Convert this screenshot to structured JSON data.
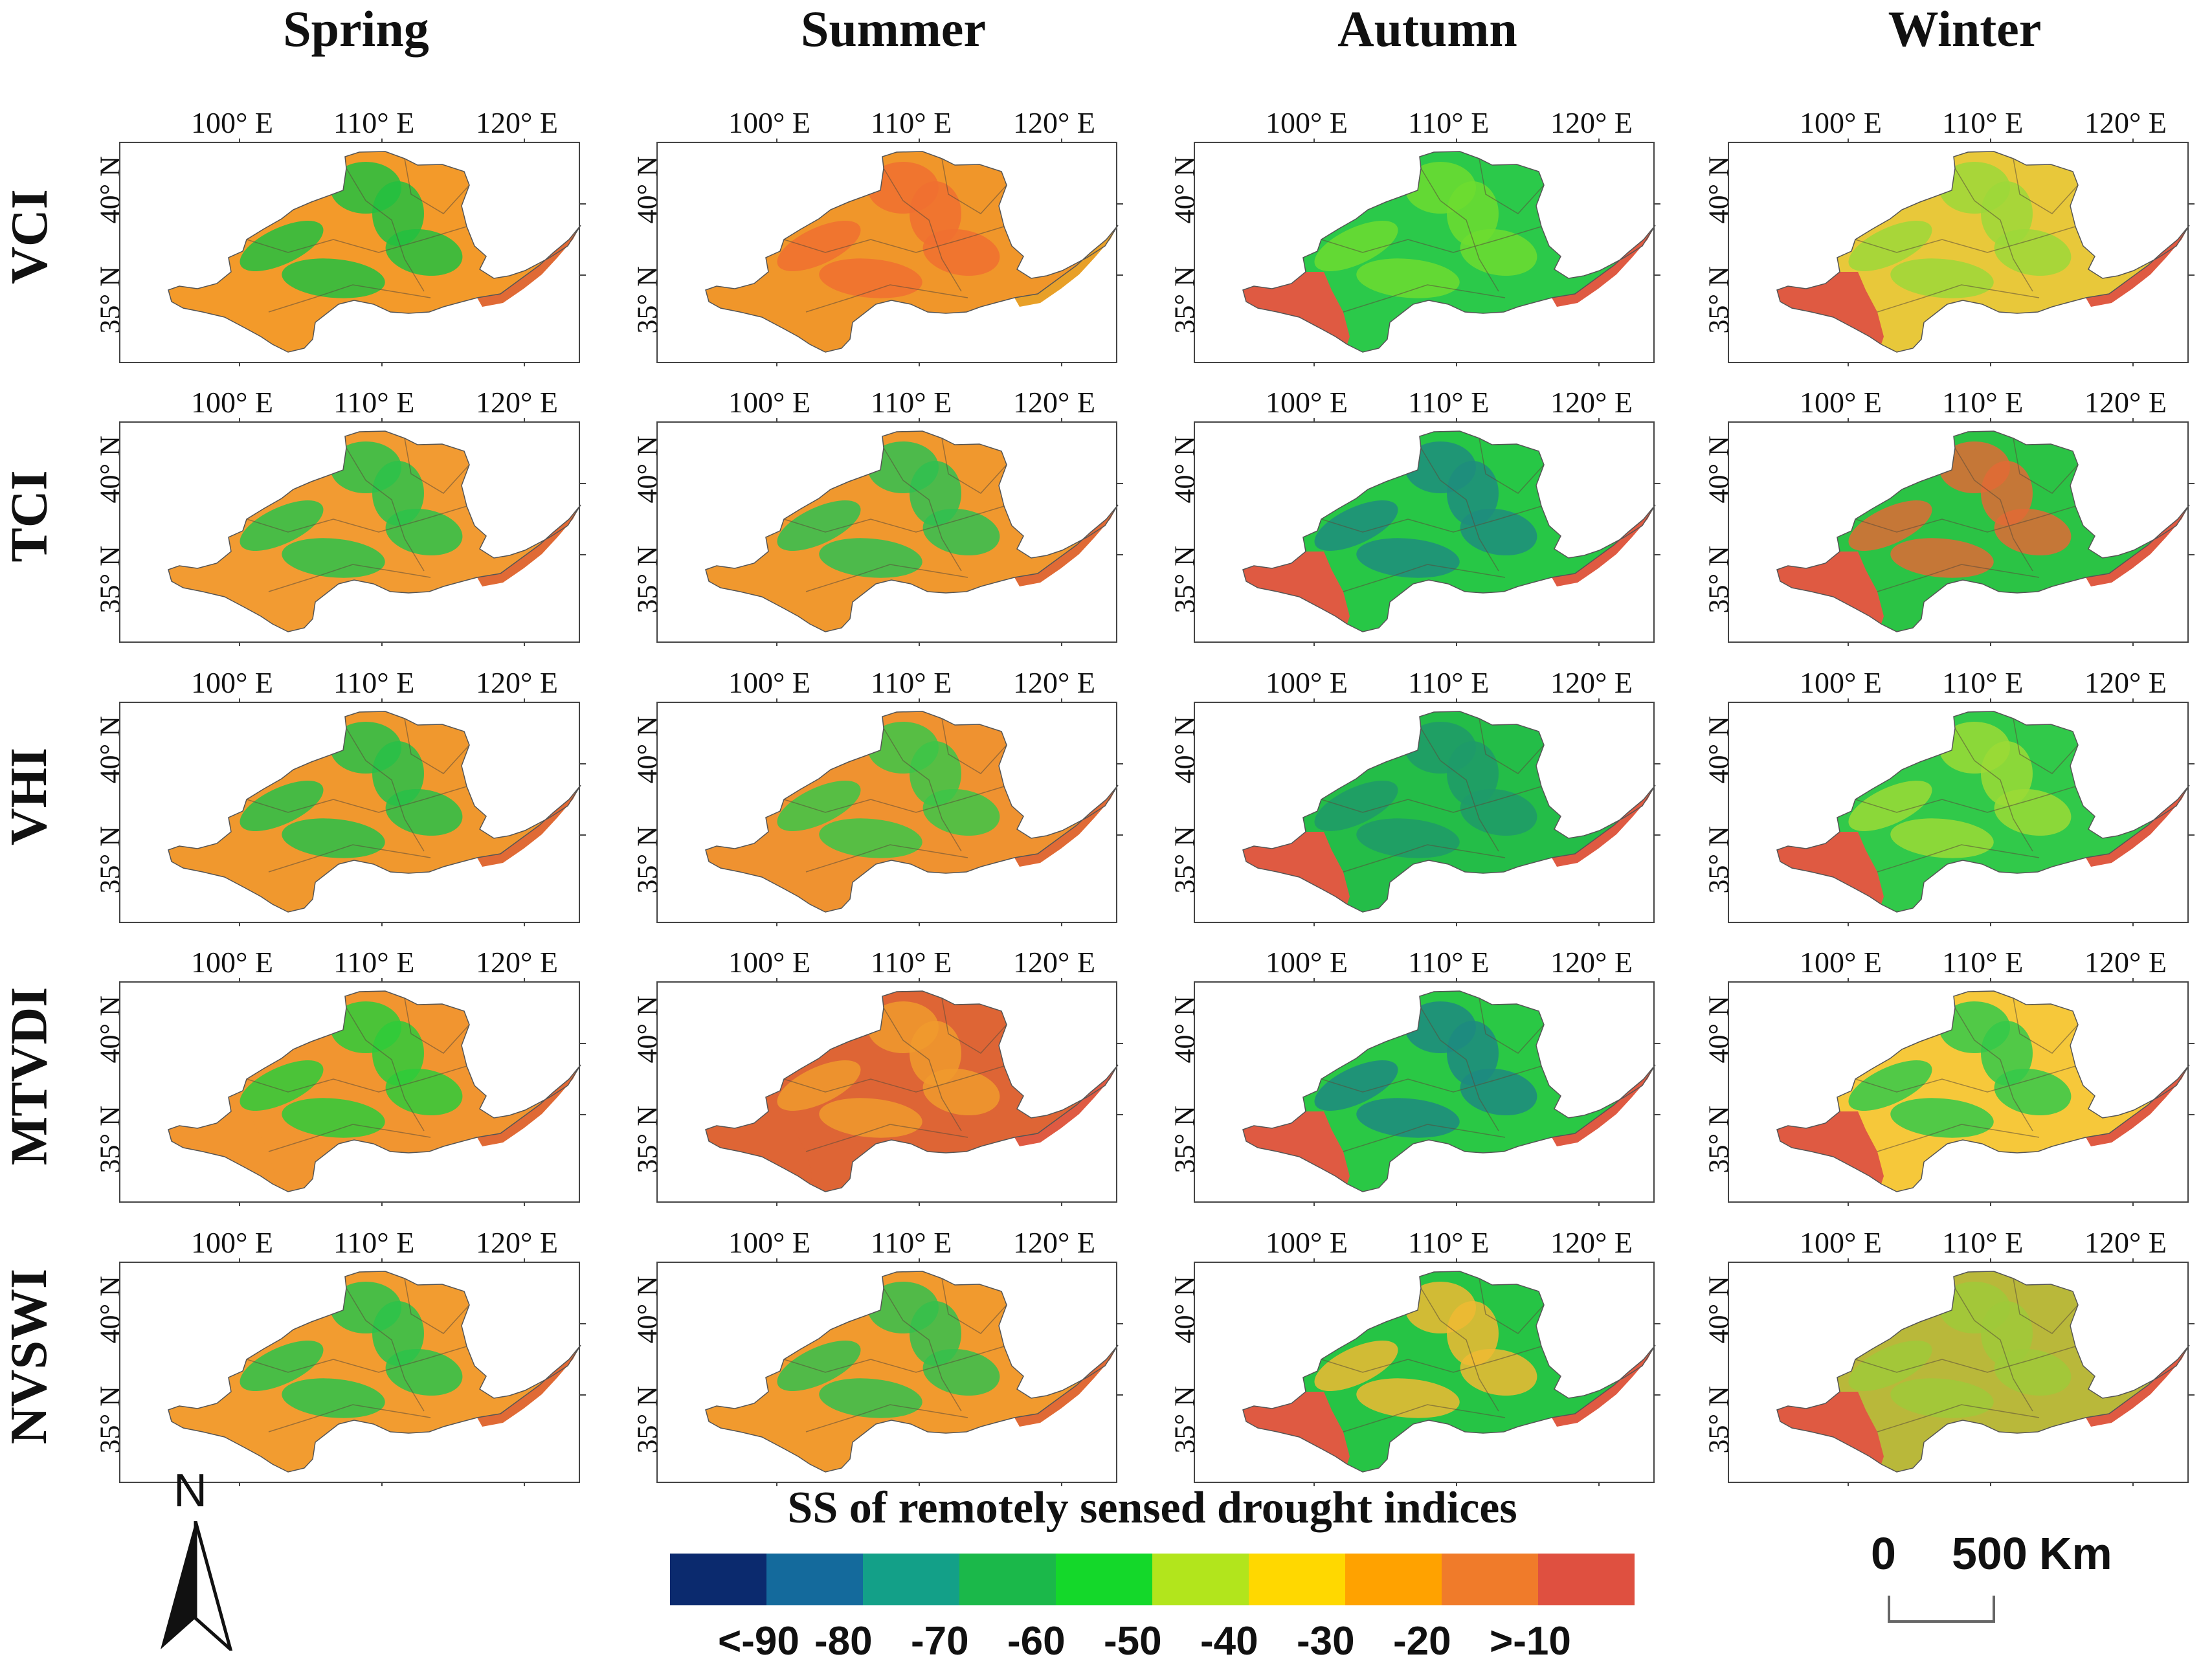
{
  "seasons": [
    "Spring",
    "Summer",
    "Autumn",
    "Winter"
  ],
  "indices": [
    "VCI",
    "TCI",
    "VHI",
    "MTVDI",
    "NVSWI"
  ],
  "lon_labels": [
    "100° E",
    "110° E",
    "120° E"
  ],
  "lat_labels": [
    "40° N",
    "35° N"
  ],
  "legend": {
    "title": "SS of remotely sensed drought indices",
    "colors": [
      "#0b2a6e",
      "#146a9c",
      "#13a088",
      "#1bb84a",
      "#14d82a",
      "#b2e51c",
      "#ffd800",
      "#ffa200",
      "#f07b2a",
      "#df5040"
    ],
    "tick_labels": [
      "<-90",
      "-80",
      "-70",
      "-60",
      "-50",
      "-40",
      "-30",
      "-20",
      ">-10"
    ]
  },
  "north_arrow_label": "N",
  "scale_bar": {
    "zero": "0",
    "value": "500",
    "unit": "Km"
  },
  "panel_palettes": [
    [
      {
        "base": "#f39a2a",
        "patch": "#22c040",
        "edge": "#e06a35"
      },
      {
        "base": "#f0962a",
        "patch": "#f07030",
        "edge": "#e8a028"
      },
      {
        "base": "#2bc94a",
        "patch": "#6ddc30",
        "edge": "#df5a42"
      },
      {
        "base": "#e8c83a",
        "patch": "#9cd83a",
        "edge": "#df5a42"
      }
    ],
    [
      {
        "base": "#f29b32",
        "patch": "#2bc24a",
        "edge": "#e06a35"
      },
      {
        "base": "#f0982e",
        "patch": "#30c050",
        "edge": "#e06a35"
      },
      {
        "base": "#27c746",
        "patch": "#1f8d7e",
        "edge": "#df5a42"
      },
      {
        "base": "#2bc345",
        "patch": "#e06a35",
        "edge": "#df5a42"
      }
    ],
    [
      {
        "base": "#f0982e",
        "patch": "#28bf48",
        "edge": "#e06a35"
      },
      {
        "base": "#ef9230",
        "patch": "#3cc548",
        "edge": "#e06a35"
      },
      {
        "base": "#24bd48",
        "patch": "#1e9a6a",
        "edge": "#df5a42"
      },
      {
        "base": "#31c94a",
        "patch": "#9bda36",
        "edge": "#df5a42"
      }
    ],
    [
      {
        "base": "#f19530",
        "patch": "#2ecb3a",
        "edge": "#e06a35"
      },
      {
        "base": "#de6535",
        "patch": "#f09a2d",
        "edge": "#df5a42"
      },
      {
        "base": "#2ac845",
        "patch": "#1d8a80",
        "edge": "#df5a42"
      },
      {
        "base": "#f6c83a",
        "patch": "#34c94a",
        "edge": "#df5a42"
      }
    ],
    [
      {
        "base": "#f29c30",
        "patch": "#2cc34a",
        "edge": "#e06a35"
      },
      {
        "base": "#f19a2e",
        "patch": "#35c04c",
        "edge": "#e06a35"
      },
      {
        "base": "#26c445",
        "patch": "#f0ba33",
        "edge": "#df5a42"
      },
      {
        "base": "#b9b83a",
        "patch": "#9fc93a",
        "edge": "#df5a42"
      }
    ]
  ]
}
